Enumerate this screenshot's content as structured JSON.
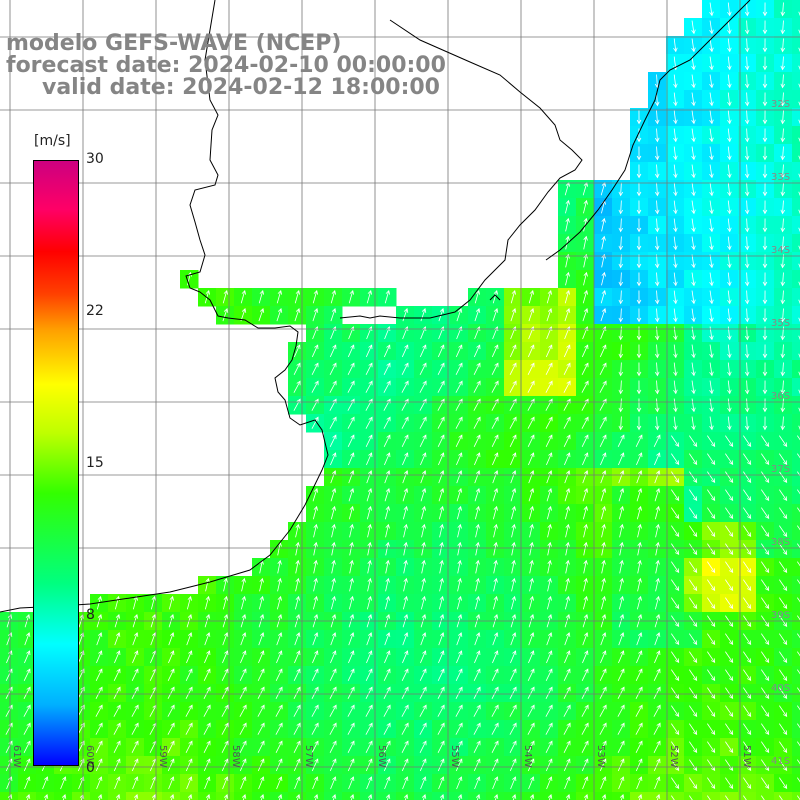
{
  "header": {
    "line1": "modelo GEFS-WAVE (NCEP)",
    "line2": "forecast date: 2024-02-10 00:00:00",
    "line3": "valid date: 2024-02-12 18:00:00"
  },
  "colorbar": {
    "unit": "[m/s]",
    "ticks": [
      "30",
      "22",
      "15",
      "8",
      "0"
    ],
    "min": 0,
    "max": 30
  },
  "axes": {
    "lon_labels": [
      "61W",
      "60W",
      "59W",
      "58W",
      "57W",
      "56W",
      "55W",
      "54W",
      "53W",
      "52W",
      "51W"
    ],
    "lat_labels": [
      "32S",
      "33S",
      "34S",
      "35S",
      "36S",
      "37S",
      "38S",
      "39S",
      "40S",
      "41S"
    ]
  },
  "field": {
    "variable": "wind speed",
    "units": "m/s",
    "colors": {
      "low": "#0000ff",
      "cyan": "#00ffff",
      "green": "#33ff00",
      "yellow": "#ffff00",
      "orange": "#ffa000",
      "high": "#cc0080"
    }
  }
}
